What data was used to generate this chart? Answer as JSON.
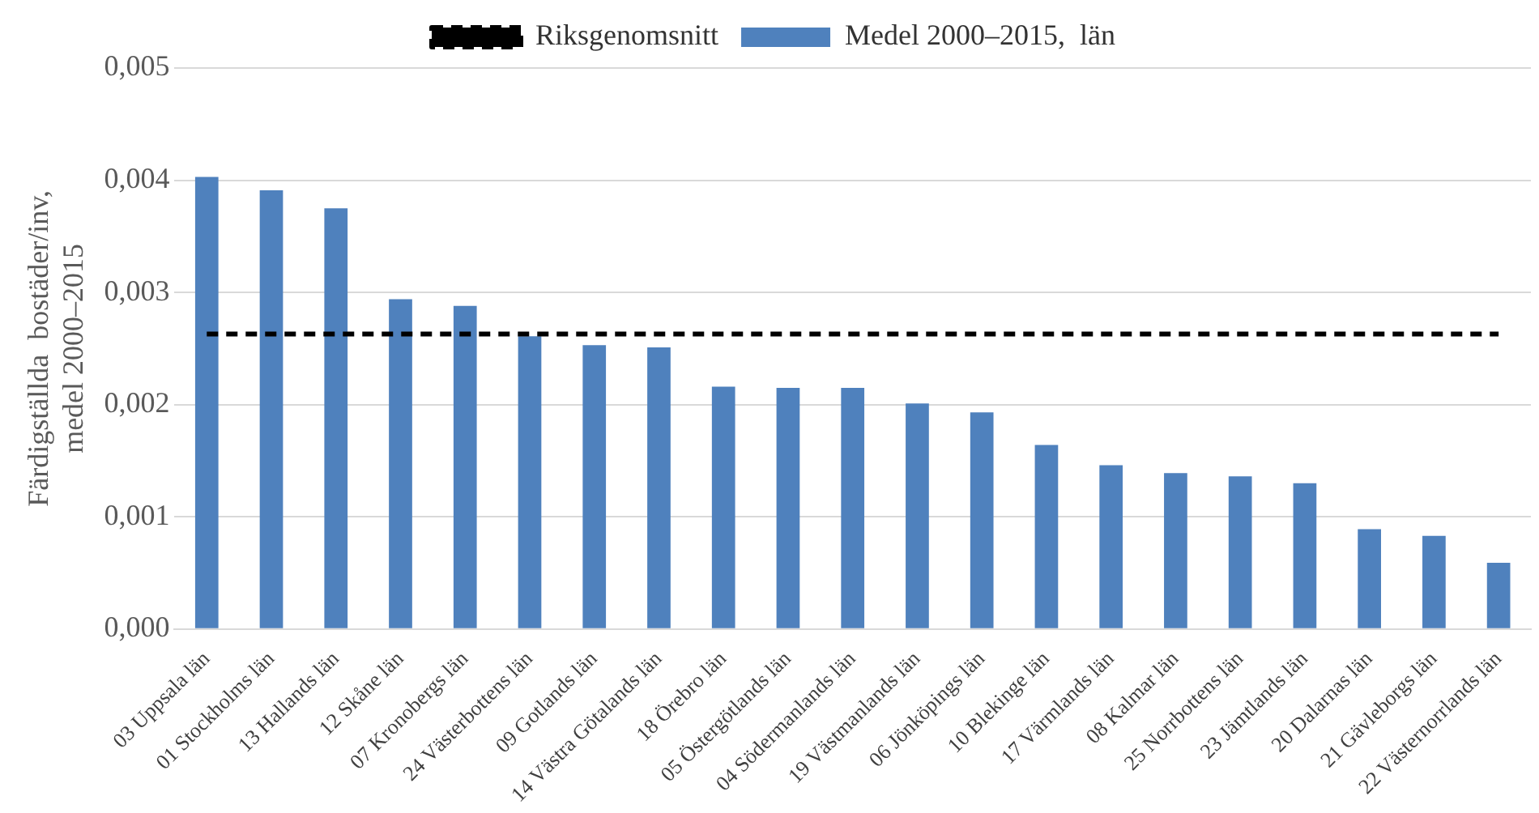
{
  "chart_data": {
    "type": "bar",
    "ylabel": "Färdigställda  bostäder/inv,\nmedel 2000–2015",
    "categories": [
      "03 Uppsala län",
      "01 Stockholms län",
      "13 Hallands län",
      "12 Skåne län",
      "07 Kronobergs län",
      "24 Västerbottens län",
      "09 Gotlands län",
      "14 Västra Götalands län",
      "18 Örebro län",
      "05 Östergötlands län",
      "04 Södermanlands län",
      "19 Västmanlands län",
      "06 Jönköpings län",
      "10 Blekinge län",
      "17 Värmlands län",
      "08 Kalmar län",
      "25 Norrbottens län",
      "23 Jämtlands län",
      "20 Dalarnas län",
      "21 Gävleborgs län",
      "22 Västernorrlands län"
    ],
    "series": [
      {
        "name": "Medel 2000–2015,  län",
        "color": "#4f81bd",
        "values": [
          0.00403,
          0.00391,
          0.00375,
          0.00294,
          0.00288,
          0.00261,
          0.00253,
          0.00251,
          0.00216,
          0.00215,
          0.00215,
          0.00201,
          0.00193,
          0.00164,
          0.00146,
          0.00139,
          0.00136,
          0.0013,
          0.00089,
          0.00083,
          0.00059
        ]
      },
      {
        "type": "line",
        "name": "Riksgenomsnitt",
        "color": "#000000",
        "line_style": "dashed",
        "marker": "none",
        "values": [
          0.00263,
          0.00263,
          0.00263,
          0.00263,
          0.00263,
          0.00263,
          0.00263,
          0.00263,
          0.00263,
          0.00263,
          0.00263,
          0.00263,
          0.00263,
          0.00263,
          0.00263,
          0.00263,
          0.00263,
          0.00263,
          0.00263,
          0.00263,
          0.00263
        ]
      }
    ],
    "ylim": [
      0,
      0.005
    ],
    "yticks": [
      {
        "value": 0,
        "label": "0,000"
      },
      {
        "value": 0.001,
        "label": "0,001"
      },
      {
        "value": 0.002,
        "label": "0,002"
      },
      {
        "value": 0.003,
        "label": "0,003"
      },
      {
        "value": 0.004,
        "label": "0,004"
      },
      {
        "value": 0.005,
        "label": "0,005"
      }
    ],
    "grid": "y",
    "legend": "top"
  }
}
